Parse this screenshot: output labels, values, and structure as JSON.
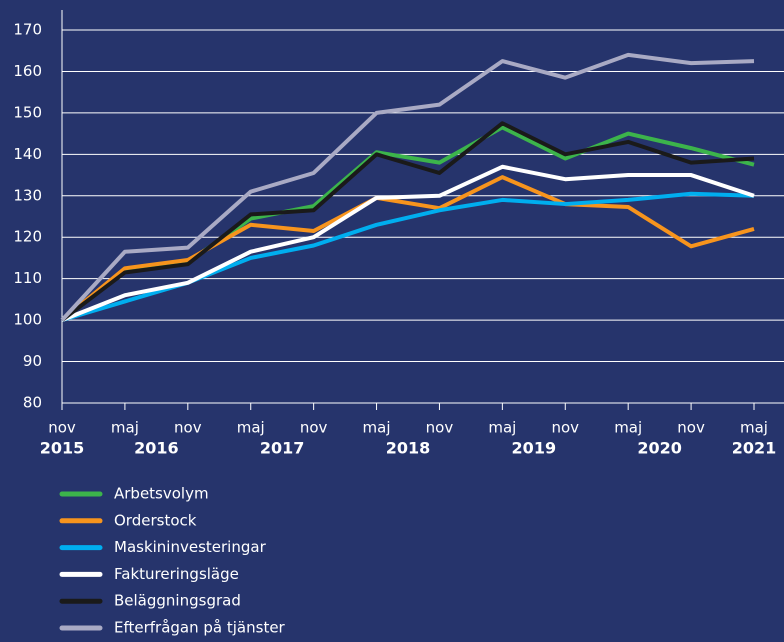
{
  "chart_data": {
    "type": "line",
    "categories": [
      "nov",
      "maj",
      "nov",
      "maj",
      "nov",
      "maj",
      "nov",
      "maj",
      "nov",
      "maj",
      "nov",
      "maj"
    ],
    "year_labels": [
      "2015",
      "2016",
      "2017",
      "2018",
      "2019",
      "2020",
      "2021"
    ],
    "ylim": [
      80,
      170
    ],
    "yticks": [
      80,
      90,
      100,
      110,
      120,
      130,
      140,
      150,
      160,
      170
    ],
    "grid": true,
    "legend": "bottom",
    "series": [
      {
        "name": "Arbetsvolym",
        "color": "#3cb44b",
        "values": [
          100,
          112,
          114,
          124.5,
          127.5,
          140.5,
          138,
          146.5,
          139,
          145,
          141.5,
          137.5
        ]
      },
      {
        "name": "Orderstock",
        "color": "#f7941d",
        "values": [
          100,
          112.5,
          114.5,
          123,
          121.5,
          129.5,
          127,
          134.5,
          128,
          127.3,
          117.8,
          122
        ]
      },
      {
        "name": "Maskininvesteringar",
        "color": "#00aeef",
        "values": [
          100,
          104.5,
          109,
          115,
          118,
          123,
          126.5,
          129,
          128,
          129,
          130.5,
          130
        ]
      },
      {
        "name": "Faktureringsläge",
        "color": "#ffffff",
        "values": [
          100,
          106,
          109,
          116.5,
          120,
          129.5,
          130,
          137,
          134,
          135,
          135,
          130
        ]
      },
      {
        "name": "Beläggningsgrad",
        "color": "#1a1a1a",
        "values": [
          100,
          111.5,
          113.5,
          125.5,
          126.5,
          140,
          135.5,
          147.5,
          140,
          143,
          138,
          139
        ]
      },
      {
        "name": "Efterfrågan på tjänster",
        "color": "#a9aac4",
        "values": [
          100,
          116.5,
          117.5,
          131,
          135.5,
          150,
          152,
          162.5,
          158.5,
          164,
          162,
          162.5
        ]
      }
    ]
  }
}
